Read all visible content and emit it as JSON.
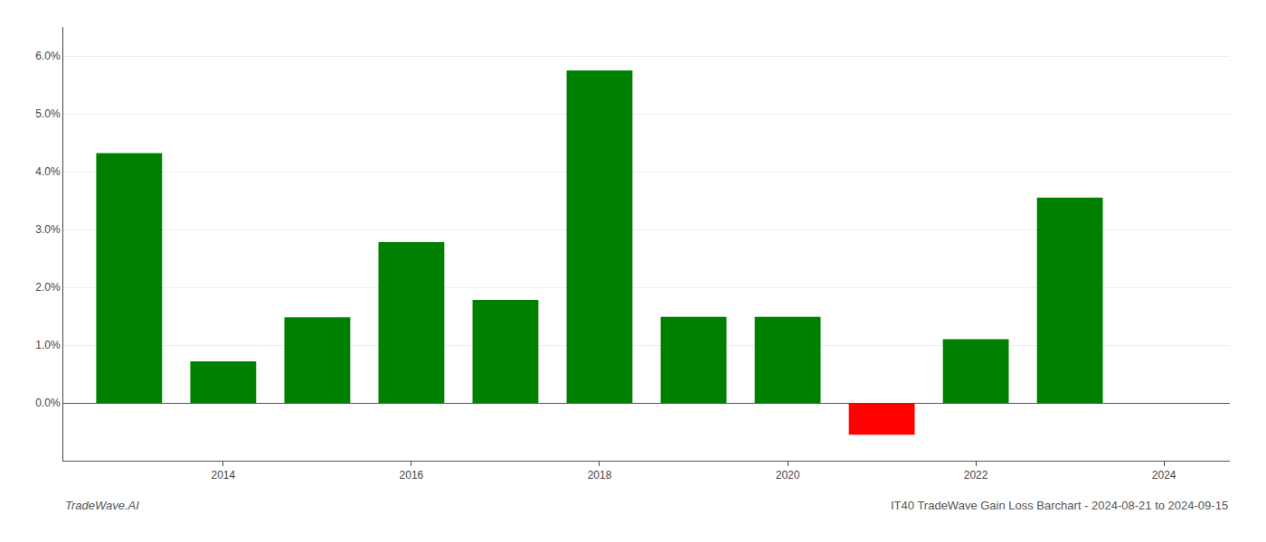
{
  "chart_data": {
    "type": "bar",
    "title": "IT40 TradeWave Gain Loss Barchart - 2024-08-21 to 2024-09-15",
    "annotations": [
      "TradeWave.AI"
    ],
    "x": [
      2013,
      2014,
      2015,
      2016,
      2017,
      2018,
      2019,
      2020,
      2021,
      2022,
      2023
    ],
    "values": [
      0.0432,
      0.0072,
      0.0148,
      0.0278,
      0.0178,
      0.0575,
      0.0149,
      0.0149,
      -0.0055,
      0.011,
      0.0355
    ],
    "colors": [
      "#008000",
      "#008000",
      "#008000",
      "#008000",
      "#008000",
      "#008000",
      "#008000",
      "#008000",
      "#ff0000",
      "#008000",
      "#008000"
    ],
    "xlim": [
      2012.3,
      2024.7
    ],
    "xticks": [
      2014,
      2016,
      2018,
      2020,
      2022,
      2024
    ],
    "ylim": [
      -0.01,
      0.065
    ],
    "yticks": [
      {
        "value": 0.0,
        "label": "0.0%"
      },
      {
        "value": 0.01,
        "label": "1.0%"
      },
      {
        "value": 0.02,
        "label": "2.0%"
      },
      {
        "value": 0.03,
        "label": "3.0%"
      },
      {
        "value": 0.04,
        "label": "4.0%"
      },
      {
        "value": 0.05,
        "label": "5.0%"
      },
      {
        "value": 0.06,
        "label": "6.0%"
      }
    ],
    "grid": true
  }
}
